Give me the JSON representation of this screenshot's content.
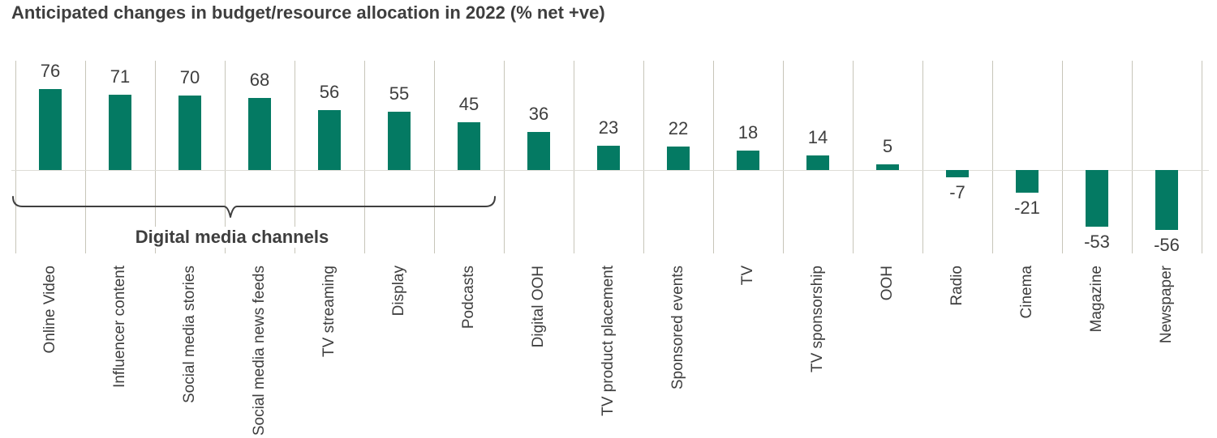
{
  "title": "Anticipated changes in budget/resource allocation in 2022 (% net +ve)",
  "chart_data": {
    "type": "bar",
    "categories": [
      "Online Video",
      "Influencer content",
      "Social media stories",
      "Social media news feeds",
      "TV streaming",
      "Display",
      "Podcasts",
      "Digital OOH",
      "TV product placement",
      "Sponsored events",
      "TV",
      "TV sponsorship",
      "OOH",
      "Radio",
      "Cinema",
      "Magazine",
      "Newspaper"
    ],
    "values": [
      76,
      71,
      70,
      68,
      56,
      55,
      45,
      36,
      23,
      22,
      18,
      14,
      5,
      -7,
      -21,
      -53,
      -56
    ],
    "title": "Anticipated changes in budget/resource allocation in 2022 (% net +ve)",
    "xlabel": "",
    "ylabel": "",
    "ylim": [
      -78,
      103
    ],
    "y_axis_visible": false,
    "grid": "vertical category separators only",
    "value_labels": "outside end of each bar",
    "category_label_rotation": -90,
    "annotation": {
      "label": "Digital media channels",
      "span_indices": [
        0,
        6
      ],
      "style": "horizontal curly bracket under first seven bars"
    }
  },
  "colors": {
    "bar": "#047a63",
    "text": "#3e3e3e",
    "gridline": "#c7c5b9",
    "zero_line": "#dddcd6",
    "bracket": "#3f3f3f",
    "background": "#ffffff"
  }
}
